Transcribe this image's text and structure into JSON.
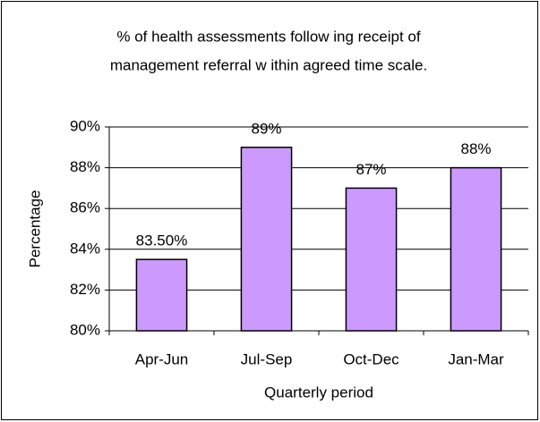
{
  "chart_data": {
    "type": "bar",
    "title": [
      "% of health assessments follow ing receipt of",
      "management referral w ithin agreed time scale."
    ],
    "x_label": "Quarterly period",
    "y_label": "Percentage",
    "categories": [
      "Apr-Jun",
      "Jul-Sep",
      "Oct-Dec",
      "Jan-Mar"
    ],
    "values": [
      83.5,
      89,
      87,
      88
    ],
    "value_labels": [
      "83.50%",
      "89%",
      "87%",
      "88%"
    ],
    "color": "#cc99ff",
    "ylim": [
      80,
      90
    ],
    "yticks": [
      {
        "value": 80,
        "label": "80%"
      },
      {
        "value": 82,
        "label": "82%"
      },
      {
        "value": 84,
        "label": "84%"
      },
      {
        "value": 86,
        "label": "86%"
      },
      {
        "value": 88,
        "label": "88%"
      },
      {
        "value": 90,
        "label": "90%"
      }
    ],
    "grid": true
  }
}
